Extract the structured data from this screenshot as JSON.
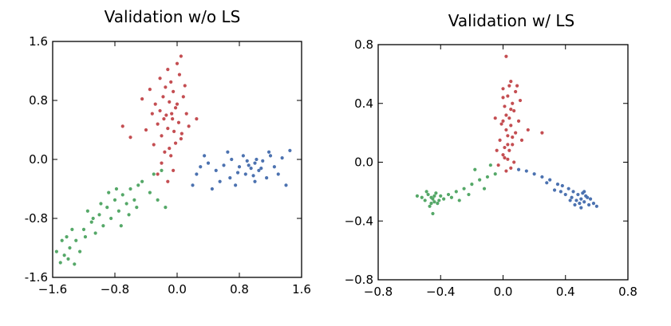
{
  "colors": {
    "red": "#c44e52",
    "blue": "#4c72b0",
    "green": "#55a868",
    "axis": "#000000",
    "background": "#ffffff"
  },
  "chart_data": [
    {
      "type": "scatter",
      "title": "Validation w/o LS",
      "xlabel": "",
      "ylabel": "",
      "xlim": [
        -1.6,
        1.6
      ],
      "ylim": [
        -1.6,
        1.6
      ],
      "xticks": [
        "−1.6",
        "−0.8",
        "0.0",
        "0.8",
        "1.6"
      ],
      "yticks": [
        "1.6",
        "0.8",
        "0.0",
        "-0.8",
        "-1.6"
      ],
      "grid": false,
      "legend": "none",
      "series": [
        {
          "color": "red",
          "points": [
            [
              -0.12,
              1.22
            ],
            [
              -0.08,
              1.05
            ],
            [
              -0.15,
              0.98
            ],
            [
              -0.05,
              0.92
            ],
            [
              -0.18,
              0.85
            ],
            [
              -0.1,
              0.78
            ],
            [
              -0.02,
              0.7
            ],
            [
              -0.22,
              0.66
            ],
            [
              -0.14,
              0.6
            ],
            [
              -0.06,
              0.55
            ],
            [
              0.02,
              0.5
            ],
            [
              -0.25,
              0.48
            ],
            [
              -0.12,
              0.42
            ],
            [
              -0.04,
              0.38
            ],
            [
              -0.2,
              0.32
            ],
            [
              0.05,
              0.28
            ],
            [
              -0.3,
              0.2
            ],
            [
              -0.1,
              0.15
            ],
            [
              0.0,
              1.3
            ],
            [
              0.05,
              1.4
            ],
            [
              -0.35,
              0.95
            ],
            [
              -0.28,
              0.75
            ],
            [
              0.08,
              0.85
            ],
            [
              0.12,
              0.62
            ],
            [
              -0.4,
              0.4
            ],
            [
              -0.6,
              0.3
            ],
            [
              -0.7,
              0.45
            ],
            [
              0.15,
              0.45
            ],
            [
              0.25,
              0.55
            ],
            [
              -0.16,
              0.1
            ],
            [
              -0.08,
              0.05
            ],
            [
              -0.2,
              -0.05
            ],
            [
              -0.05,
              -0.15
            ],
            [
              -0.25,
              -0.2
            ],
            [
              -0.12,
              -0.3
            ],
            [
              0.03,
              1.15
            ],
            [
              -0.22,
              1.1
            ],
            [
              0.0,
              0.75
            ],
            [
              -0.07,
              0.62
            ],
            [
              -0.17,
              0.55
            ],
            [
              0.06,
              0.35
            ],
            [
              -0.02,
              0.22
            ],
            [
              -0.32,
              0.62
            ],
            [
              -0.45,
              0.82
            ],
            [
              0.1,
              1.0
            ]
          ]
        },
        {
          "color": "blue",
          "points": [
            [
              0.95,
              -0.12
            ],
            [
              1.0,
              -0.05
            ],
            [
              0.88,
              -0.2
            ],
            [
              1.05,
              -0.15
            ],
            [
              0.92,
              -0.08
            ],
            [
              1.1,
              -0.02
            ],
            [
              0.8,
              -0.1
            ],
            [
              1.15,
              -0.25
            ],
            [
              0.7,
              0.0
            ],
            [
              0.6,
              -0.08
            ],
            [
              1.2,
              0.05
            ],
            [
              1.25,
              -0.1
            ],
            [
              0.5,
              -0.15
            ],
            [
              0.4,
              -0.05
            ],
            [
              1.3,
              -0.2
            ],
            [
              0.35,
              0.05
            ],
            [
              0.25,
              -0.2
            ],
            [
              1.4,
              -0.35
            ],
            [
              0.55,
              -0.3
            ],
            [
              0.75,
              -0.35
            ],
            [
              1.0,
              -0.3
            ],
            [
              0.3,
              -0.1
            ],
            [
              1.45,
              0.12
            ],
            [
              0.65,
              0.1
            ],
            [
              0.85,
              0.05
            ],
            [
              1.18,
              0.1
            ],
            [
              0.98,
              -0.22
            ],
            [
              1.08,
              -0.12
            ],
            [
              0.9,
              -0.02
            ],
            [
              0.2,
              -0.35
            ],
            [
              0.45,
              -0.4
            ],
            [
              1.35,
              0.02
            ],
            [
              0.78,
              -0.18
            ],
            [
              1.02,
              0.0
            ],
            [
              0.68,
              -0.25
            ]
          ]
        },
        {
          "color": "green",
          "points": [
            [
              -1.45,
              -1.3
            ],
            [
              -1.38,
              -1.2
            ],
            [
              -1.3,
              -1.1
            ],
            [
              -1.2,
              -0.95
            ],
            [
              -1.1,
              -0.85
            ],
            [
              -1.0,
              -0.75
            ],
            [
              -0.9,
              -0.65
            ],
            [
              -0.8,
              -0.55
            ],
            [
              -0.7,
              -0.48
            ],
            [
              -0.6,
              -0.4
            ],
            [
              -0.5,
              -0.35
            ],
            [
              -1.5,
              -1.4
            ],
            [
              -1.42,
              -1.05
            ],
            [
              -1.25,
              -1.25
            ],
            [
              -1.15,
              -0.7
            ],
            [
              -0.95,
              -0.9
            ],
            [
              -0.85,
              -0.8
            ],
            [
              -0.75,
              -0.7
            ],
            [
              -0.65,
              -0.6
            ],
            [
              -0.55,
              -0.55
            ],
            [
              -0.45,
              -0.3
            ],
            [
              -0.3,
              -0.2
            ],
            [
              -0.2,
              -0.15
            ],
            [
              -1.35,
              -0.95
            ],
            [
              -1.05,
              -1.0
            ],
            [
              -0.98,
              -0.6
            ],
            [
              -0.88,
              -0.45
            ],
            [
              -0.72,
              -0.9
            ],
            [
              -0.62,
              -0.75
            ],
            [
              -0.52,
              -0.65
            ],
            [
              -1.48,
              -1.1
            ],
            [
              -1.32,
              -1.42
            ],
            [
              -1.18,
              -1.05
            ],
            [
              -0.78,
              -0.4
            ],
            [
              -0.35,
              -0.45
            ],
            [
              -0.25,
              -0.55
            ],
            [
              -0.15,
              -0.65
            ],
            [
              -1.55,
              -1.25
            ],
            [
              -1.4,
              -1.35
            ],
            [
              -1.08,
              -0.8
            ]
          ]
        }
      ]
    },
    {
      "type": "scatter",
      "title": "Validation w/ LS",
      "xlabel": "",
      "ylabel": "",
      "xlim": [
        -0.8,
        0.8
      ],
      "ylim": [
        -0.8,
        0.8
      ],
      "xticks": [
        "−0.8",
        "−0.4",
        "0.0",
        "0.4",
        "0.8"
      ],
      "yticks": [
        "0.8",
        "0.4",
        "0.0",
        "−0.4",
        "−0.8"
      ],
      "grid": false,
      "legend": "none",
      "series": [
        {
          "color": "red",
          "points": [
            [
              0.02,
              0.72
            ],
            [
              0.05,
              0.55
            ],
            [
              0.0,
              0.5
            ],
            [
              0.08,
              0.48
            ],
            [
              0.03,
              0.45
            ],
            [
              0.06,
              0.4
            ],
            [
              0.01,
              0.38
            ],
            [
              0.07,
              0.35
            ],
            [
              0.04,
              0.3
            ],
            [
              0.0,
              0.28
            ],
            [
              0.05,
              0.25
            ],
            [
              0.02,
              0.22
            ],
            [
              0.08,
              0.2
            ],
            [
              0.03,
              0.18
            ],
            [
              -0.02,
              0.15
            ],
            [
              0.06,
              0.12
            ],
            [
              0.01,
              0.1
            ],
            [
              0.04,
              0.08
            ],
            [
              0.0,
              0.05
            ],
            [
              0.03,
              0.02
            ],
            [
              -0.03,
              -0.02
            ],
            [
              0.05,
              -0.04
            ],
            [
              0.02,
              -0.06
            ],
            [
              0.1,
              0.28
            ],
            [
              0.12,
              0.15
            ],
            [
              -0.05,
              0.3
            ],
            [
              0.09,
              0.52
            ],
            [
              0.11,
              0.42
            ],
            [
              0.25,
              0.2
            ],
            [
              0.16,
              0.22
            ],
            [
              -0.04,
              0.08
            ],
            [
              0.07,
              0.0
            ],
            [
              0.0,
              0.44
            ],
            [
              0.04,
              0.52
            ],
            [
              0.02,
              0.32
            ],
            [
              -0.01,
              0.26
            ],
            [
              0.06,
              0.17
            ],
            [
              0.03,
              0.12
            ],
            [
              0.01,
              0.03
            ],
            [
              0.05,
              0.36
            ]
          ]
        },
        {
          "color": "blue",
          "points": [
            [
              0.5,
              -0.25
            ],
            [
              0.48,
              -0.22
            ],
            [
              0.52,
              -0.27
            ],
            [
              0.45,
              -0.2
            ],
            [
              0.55,
              -0.29
            ],
            [
              0.42,
              -0.18
            ],
            [
              0.58,
              -0.28
            ],
            [
              0.38,
              -0.16
            ],
            [
              0.35,
              -0.15
            ],
            [
              0.3,
              -0.12
            ],
            [
              0.25,
              -0.1
            ],
            [
              0.2,
              -0.08
            ],
            [
              0.15,
              -0.06
            ],
            [
              0.1,
              -0.05
            ],
            [
              0.47,
              -0.26
            ],
            [
              0.53,
              -0.23
            ],
            [
              0.49,
              -0.28
            ],
            [
              0.51,
              -0.21
            ],
            [
              0.6,
              -0.3
            ],
            [
              0.44,
              -0.24
            ],
            [
              0.4,
              -0.22
            ],
            [
              0.56,
              -0.25
            ],
            [
              0.46,
              -0.29
            ],
            [
              0.33,
              -0.19
            ],
            [
              0.28,
              -0.14
            ],
            [
              0.5,
              -0.31
            ],
            [
              0.54,
              -0.24
            ],
            [
              0.43,
              -0.26
            ],
            [
              0.37,
              -0.2
            ],
            [
              0.52,
              -0.2
            ]
          ]
        },
        {
          "color": "green",
          "points": [
            [
              -0.45,
              -0.25
            ],
            [
              -0.48,
              -0.22
            ],
            [
              -0.42,
              -0.28
            ],
            [
              -0.5,
              -0.26
            ],
            [
              -0.46,
              -0.24
            ],
            [
              -0.44,
              -0.27
            ],
            [
              -0.4,
              -0.23
            ],
            [
              -0.52,
              -0.24
            ],
            [
              -0.47,
              -0.3
            ],
            [
              -0.43,
              -0.21
            ],
            [
              -0.38,
              -0.25
            ],
            [
              -0.35,
              -0.22
            ],
            [
              -0.3,
              -0.2
            ],
            [
              -0.25,
              -0.18
            ],
            [
              -0.2,
              -0.15
            ],
            [
              -0.15,
              -0.12
            ],
            [
              -0.1,
              -0.1
            ],
            [
              -0.05,
              -0.08
            ],
            [
              -0.55,
              -0.23
            ],
            [
              -0.45,
              -0.35
            ],
            [
              -0.28,
              -0.26
            ],
            [
              -0.22,
              -0.22
            ],
            [
              -0.18,
              -0.05
            ],
            [
              -0.12,
              -0.18
            ],
            [
              -0.08,
              -0.02
            ],
            [
              -0.41,
              -0.26
            ],
            [
              -0.49,
              -0.2
            ],
            [
              -0.44,
              -0.23
            ],
            [
              -0.46,
              -0.28
            ],
            [
              -0.33,
              -0.24
            ]
          ]
        }
      ]
    }
  ]
}
